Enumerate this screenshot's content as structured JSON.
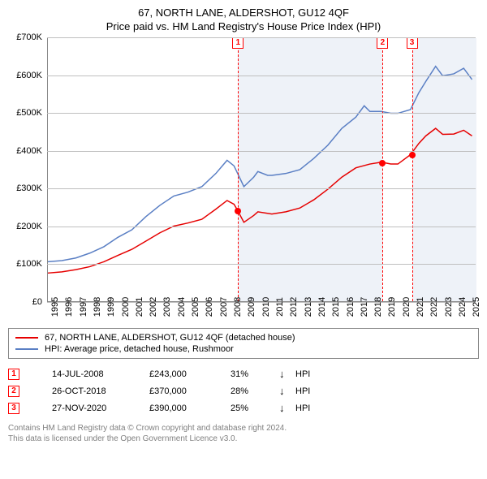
{
  "title1": "67, NORTH LANE, ALDERSHOT, GU12 4QF",
  "title2": "Price paid vs. HM Land Registry's House Price Index (HPI)",
  "chart": {
    "type": "line",
    "xlim": [
      1995,
      2025.5
    ],
    "ylim": [
      0,
      700000
    ],
    "ytick_step": 100000,
    "yticks": [
      "£0",
      "£100K",
      "£200K",
      "£300K",
      "£400K",
      "£500K",
      "£600K",
      "£700K"
    ],
    "xticks": [
      1995,
      1996,
      1997,
      1998,
      1999,
      2000,
      2001,
      2002,
      2003,
      2004,
      2005,
      2006,
      2007,
      2008,
      2009,
      2010,
      2011,
      2012,
      2013,
      2014,
      2015,
      2016,
      2017,
      2018,
      2019,
      2020,
      2021,
      2022,
      2023,
      2024,
      2025
    ],
    "grid_color": "#bfbfbf",
    "background_color": "#ffffff",
    "plot_border_color": "#888888",
    "tick_fontsize": 11,
    "title_fontsize": 13,
    "shaded_ranges": [
      {
        "from": 2008.53,
        "to": 2018.82,
        "color": "#eef2f8"
      },
      {
        "from": 2020.91,
        "to": 2025.5,
        "color": "#eef2f8"
      }
    ],
    "sale_markers": [
      {
        "n": "1",
        "x": 2008.53,
        "price": 243000
      },
      {
        "n": "2",
        "x": 2018.82,
        "price": 370000
      },
      {
        "n": "3",
        "x": 2020.91,
        "price": 390000
      }
    ],
    "series": [
      {
        "name": "hpi",
        "label": "HPI: Average price, detached house, Rushmoor",
        "color": "#5a7fc4",
        "width": 1.5,
        "data": [
          [
            1995,
            105000
          ],
          [
            1996,
            108000
          ],
          [
            1997,
            115000
          ],
          [
            1998,
            128000
          ],
          [
            1999,
            145000
          ],
          [
            2000,
            170000
          ],
          [
            2001,
            190000
          ],
          [
            2002,
            225000
          ],
          [
            2003,
            255000
          ],
          [
            2004,
            280000
          ],
          [
            2005,
            290000
          ],
          [
            2006,
            305000
          ],
          [
            2007,
            340000
          ],
          [
            2007.8,
            375000
          ],
          [
            2008.3,
            360000
          ],
          [
            2009,
            305000
          ],
          [
            2009.7,
            330000
          ],
          [
            2010,
            345000
          ],
          [
            2010.7,
            335000
          ],
          [
            2011,
            335000
          ],
          [
            2012,
            340000
          ],
          [
            2013,
            350000
          ],
          [
            2014,
            380000
          ],
          [
            2015,
            415000
          ],
          [
            2016,
            460000
          ],
          [
            2017,
            490000
          ],
          [
            2017.6,
            520000
          ],
          [
            2018,
            505000
          ],
          [
            2018.8,
            505000
          ],
          [
            2019.5,
            500000
          ],
          [
            2020,
            500000
          ],
          [
            2020.9,
            510000
          ],
          [
            2021.5,
            555000
          ],
          [
            2022,
            585000
          ],
          [
            2022.7,
            625000
          ],
          [
            2023.2,
            600000
          ],
          [
            2024,
            605000
          ],
          [
            2024.7,
            620000
          ],
          [
            2025.3,
            590000
          ]
        ]
      },
      {
        "name": "property",
        "label": "67, NORTH LANE, ALDERSHOT, GU12 4QF (detached house)",
        "color": "#e60000",
        "width": 1.5,
        "data": [
          [
            1995,
            75000
          ],
          [
            1996,
            78000
          ],
          [
            1997,
            84000
          ],
          [
            1998,
            92000
          ],
          [
            1999,
            105000
          ],
          [
            2000,
            122000
          ],
          [
            2001,
            138000
          ],
          [
            2002,
            160000
          ],
          [
            2003,
            182000
          ],
          [
            2004,
            200000
          ],
          [
            2005,
            208000
          ],
          [
            2006,
            218000
          ],
          [
            2007,
            245000
          ],
          [
            2007.8,
            268000
          ],
          [
            2008.3,
            258000
          ],
          [
            2008.53,
            243000
          ],
          [
            2009,
            210000
          ],
          [
            2009.7,
            228000
          ],
          [
            2010,
            238000
          ],
          [
            2011,
            232000
          ],
          [
            2012,
            238000
          ],
          [
            2013,
            248000
          ],
          [
            2014,
            270000
          ],
          [
            2015,
            298000
          ],
          [
            2016,
            330000
          ],
          [
            2017,
            355000
          ],
          [
            2018,
            365000
          ],
          [
            2018.82,
            370000
          ],
          [
            2019.5,
            365000
          ],
          [
            2020,
            365000
          ],
          [
            2020.91,
            390000
          ],
          [
            2021.5,
            420000
          ],
          [
            2022,
            440000
          ],
          [
            2022.7,
            460000
          ],
          [
            2023.2,
            444000
          ],
          [
            2024,
            445000
          ],
          [
            2024.7,
            455000
          ],
          [
            2025.3,
            440000
          ]
        ]
      }
    ]
  },
  "legend": {
    "items": [
      {
        "color": "#e60000",
        "label": "67, NORTH LANE, ALDERSHOT, GU12 4QF (detached house)"
      },
      {
        "color": "#5a7fc4",
        "label": "HPI: Average price, detached house, Rushmoor"
      }
    ]
  },
  "sales_table": {
    "rows": [
      {
        "n": "1",
        "date": "14-JUL-2008",
        "price": "£243,000",
        "pct": "31%",
        "arrow": "↓",
        "suffix": "HPI"
      },
      {
        "n": "2",
        "date": "26-OCT-2018",
        "price": "£370,000",
        "pct": "28%",
        "arrow": "↓",
        "suffix": "HPI"
      },
      {
        "n": "3",
        "date": "27-NOV-2020",
        "price": "£390,000",
        "pct": "25%",
        "arrow": "↓",
        "suffix": "HPI"
      }
    ]
  },
  "footer": {
    "line1": "Contains HM Land Registry data © Crown copyright and database right 2024.",
    "line2": "This data is licensed under the Open Government Licence v3.0."
  }
}
